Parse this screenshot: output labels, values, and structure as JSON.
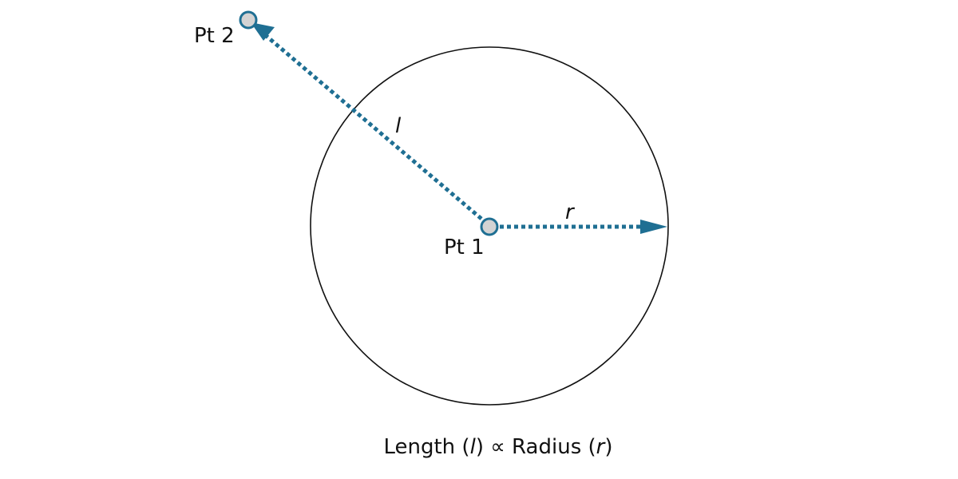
{
  "colors": {
    "accent": "#1f6f93",
    "point_fill": "#d3d3d3",
    "circle_stroke": "#111111",
    "text": "#111111"
  },
  "points": {
    "pt1_label": "Pt 1",
    "pt2_label": "Pt 2"
  },
  "segments": {
    "length_label": "l",
    "radius_label": "r"
  },
  "caption": {
    "length_word": "Length (",
    "length_var": "l",
    "proportional": ") ∝ Radius (",
    "radius_var": "r",
    "close": ")"
  }
}
